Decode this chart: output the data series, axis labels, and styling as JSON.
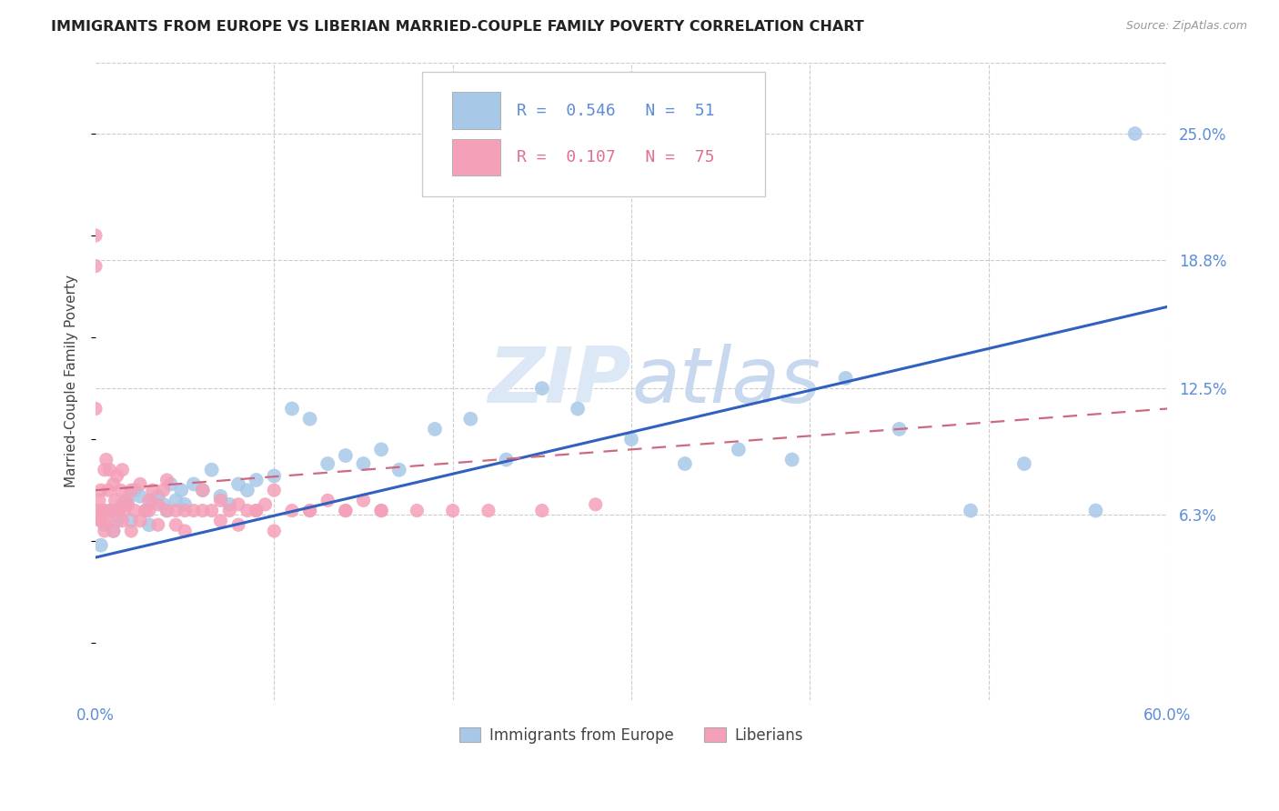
{
  "title": "IMMIGRANTS FROM EUROPE VS LIBERIAN MARRIED-COUPLE FAMILY POVERTY CORRELATION CHART",
  "source": "Source: ZipAtlas.com",
  "ylabel": "Married-Couple Family Poverty",
  "ytick_labels": [
    "25.0%",
    "18.8%",
    "12.5%",
    "6.3%"
  ],
  "ytick_values": [
    0.25,
    0.188,
    0.125,
    0.063
  ],
  "legend1_r": "0.546",
  "legend1_n": "51",
  "legend2_r": "0.107",
  "legend2_n": "75",
  "blue_color": "#a8c8e8",
  "pink_color": "#f4a0b8",
  "blue_line_color": "#3060c0",
  "pink_line_color": "#d06880",
  "watermark_color": "#dce8f5",
  "legend_label1": "Immigrants from Europe",
  "legend_label2": "Liberians",
  "xmin": 0.0,
  "xmax": 0.6,
  "ymin": -0.028,
  "ymax": 0.285,
  "blue_scatter_x": [
    0.003,
    0.005,
    0.008,
    0.01,
    0.012,
    0.015,
    0.018,
    0.02,
    0.022,
    0.025,
    0.028,
    0.03,
    0.032,
    0.035,
    0.038,
    0.04,
    0.042,
    0.045,
    0.048,
    0.05,
    0.055,
    0.06,
    0.065,
    0.07,
    0.075,
    0.08,
    0.085,
    0.09,
    0.1,
    0.11,
    0.12,
    0.13,
    0.14,
    0.15,
    0.16,
    0.17,
    0.19,
    0.21,
    0.23,
    0.25,
    0.27,
    0.3,
    0.33,
    0.36,
    0.39,
    0.42,
    0.45,
    0.49,
    0.52,
    0.56,
    0.582
  ],
  "blue_scatter_y": [
    0.048,
    0.058,
    0.065,
    0.055,
    0.06,
    0.068,
    0.07,
    0.06,
    0.075,
    0.072,
    0.065,
    0.058,
    0.07,
    0.072,
    0.068,
    0.065,
    0.078,
    0.07,
    0.075,
    0.068,
    0.078,
    0.075,
    0.085,
    0.072,
    0.068,
    0.078,
    0.075,
    0.08,
    0.082,
    0.115,
    0.11,
    0.088,
    0.092,
    0.088,
    0.095,
    0.085,
    0.105,
    0.11,
    0.09,
    0.125,
    0.115,
    0.1,
    0.088,
    0.095,
    0.09,
    0.13,
    0.105,
    0.065,
    0.088,
    0.065,
    0.25
  ],
  "pink_scatter_x": [
    0.0,
    0.0,
    0.0,
    0.001,
    0.002,
    0.003,
    0.003,
    0.004,
    0.005,
    0.005,
    0.006,
    0.007,
    0.008,
    0.009,
    0.01,
    0.011,
    0.012,
    0.013,
    0.014,
    0.015,
    0.016,
    0.017,
    0.018,
    0.02,
    0.022,
    0.025,
    0.028,
    0.03,
    0.032,
    0.035,
    0.038,
    0.04,
    0.045,
    0.05,
    0.055,
    0.06,
    0.065,
    0.07,
    0.075,
    0.08,
    0.085,
    0.09,
    0.095,
    0.1,
    0.11,
    0.12,
    0.13,
    0.14,
    0.15,
    0.16,
    0.003,
    0.005,
    0.008,
    0.01,
    0.015,
    0.02,
    0.025,
    0.03,
    0.035,
    0.04,
    0.045,
    0.05,
    0.06,
    0.07,
    0.08,
    0.09,
    0.1,
    0.12,
    0.14,
    0.16,
    0.18,
    0.2,
    0.22,
    0.25,
    0.28
  ],
  "pink_scatter_y": [
    0.2,
    0.185,
    0.115,
    0.065,
    0.07,
    0.075,
    0.06,
    0.065,
    0.065,
    0.085,
    0.09,
    0.075,
    0.085,
    0.065,
    0.078,
    0.07,
    0.082,
    0.065,
    0.075,
    0.085,
    0.065,
    0.07,
    0.068,
    0.075,
    0.065,
    0.078,
    0.065,
    0.07,
    0.075,
    0.068,
    0.075,
    0.08,
    0.065,
    0.065,
    0.065,
    0.075,
    0.065,
    0.07,
    0.065,
    0.068,
    0.065,
    0.065,
    0.068,
    0.075,
    0.065,
    0.065,
    0.07,
    0.065,
    0.07,
    0.065,
    0.06,
    0.055,
    0.06,
    0.055,
    0.06,
    0.055,
    0.06,
    0.065,
    0.058,
    0.065,
    0.058,
    0.055,
    0.065,
    0.06,
    0.058,
    0.065,
    0.055,
    0.065,
    0.065,
    0.065,
    0.065,
    0.065,
    0.065,
    0.065,
    0.068
  ]
}
